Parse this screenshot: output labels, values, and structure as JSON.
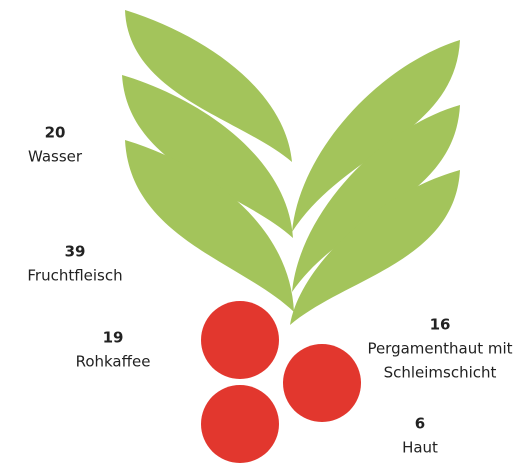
{
  "items": [
    {
      "value": 20,
      "label": [
        "Wasser"
      ]
    },
    {
      "value": 39,
      "label": [
        "Fruchtfleisch"
      ]
    },
    {
      "value": 19,
      "label": [
        "Rohkaffee"
      ]
    },
    {
      "value": 16,
      "label": [
        "Pergamenthaut mit",
        "Schleimschicht"
      ]
    },
    {
      "value": 6,
      "label": [
        "Haut"
      ]
    }
  ]
}
